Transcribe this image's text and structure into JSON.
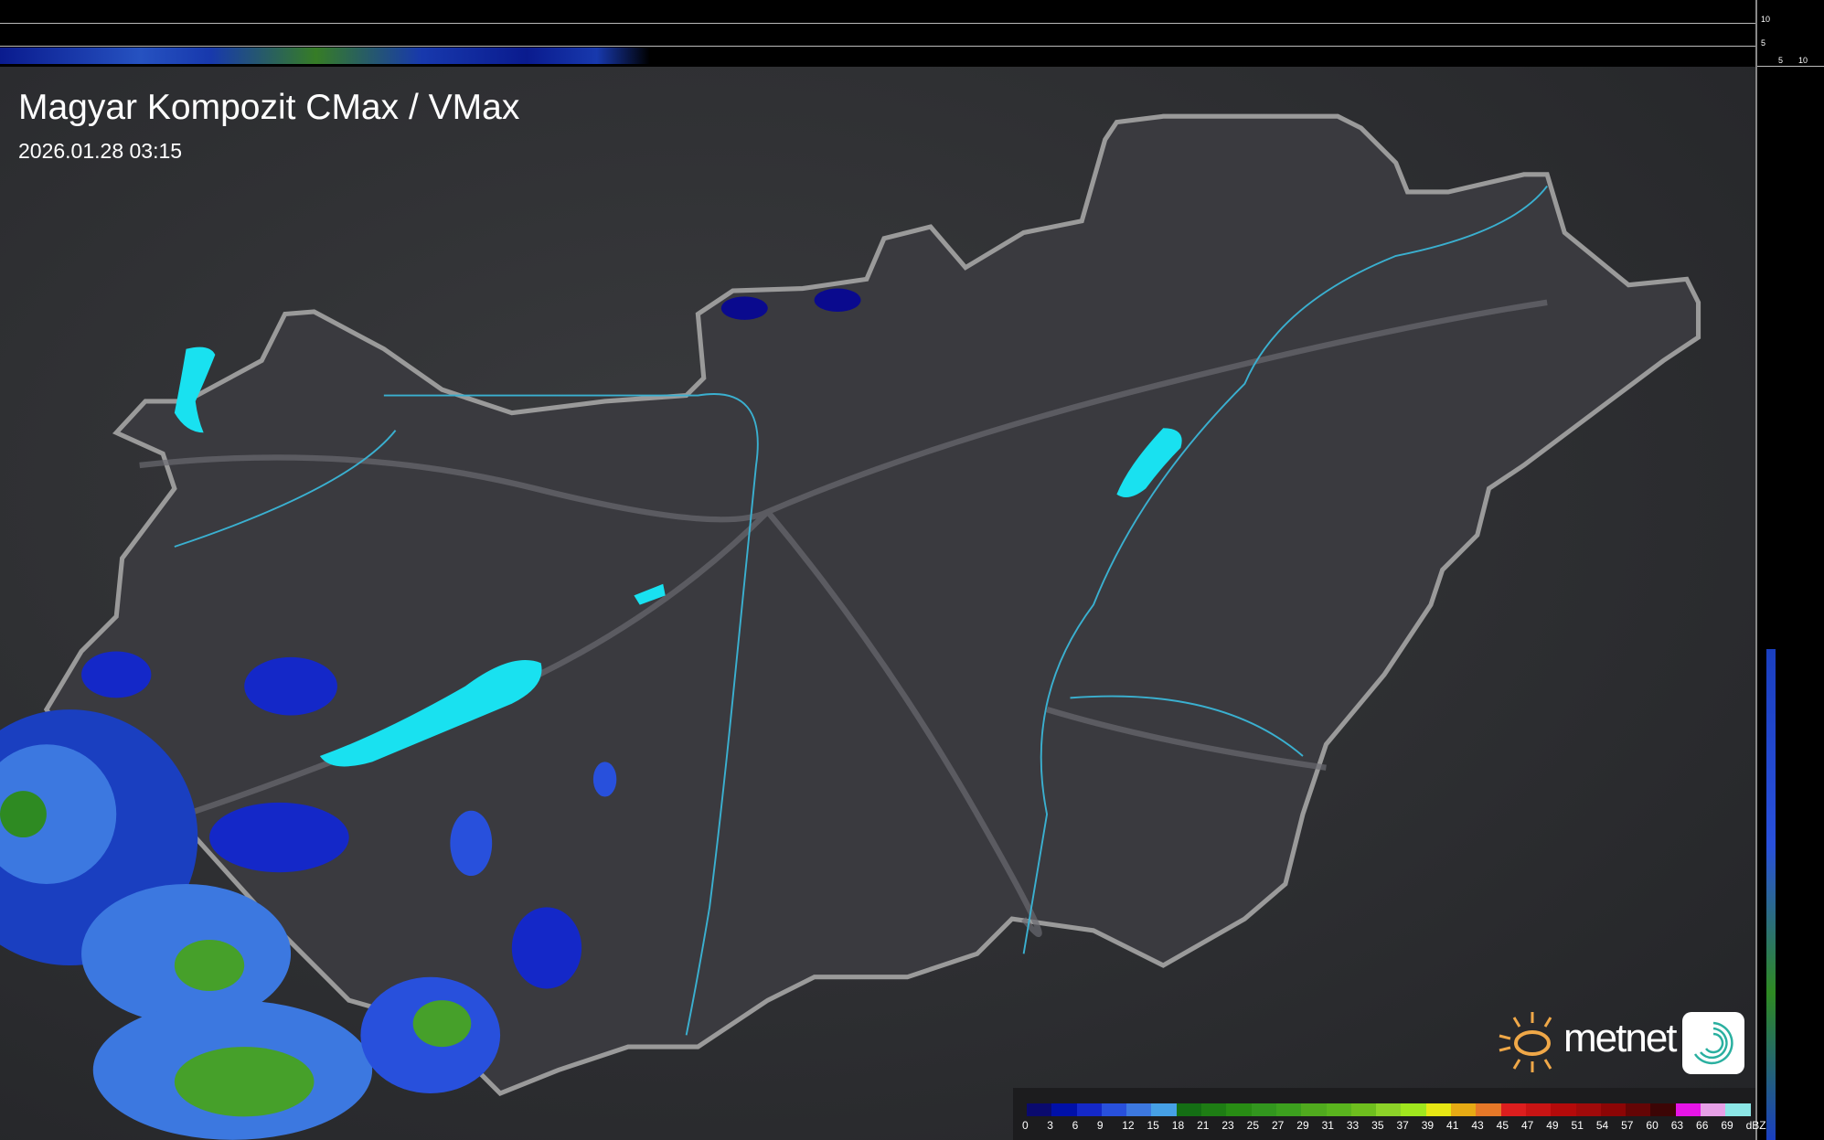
{
  "title": "Magyar Kompozit CMax / VMax",
  "timestamp": "2026.01.28 03:15",
  "side_scale": {
    "v_ticks": [
      "10",
      "5"
    ],
    "h_ticks": [
      "5",
      "10"
    ]
  },
  "legend": {
    "unit": "dBZ",
    "labels": [
      "0",
      "3",
      "6",
      "9",
      "12",
      "15",
      "18",
      "21",
      "23",
      "25",
      "27",
      "29",
      "31",
      "33",
      "35",
      "37",
      "39",
      "41",
      "43",
      "45",
      "47",
      "49",
      "51",
      "54",
      "57",
      "60",
      "63",
      "66",
      "69"
    ],
    "colors": [
      "#0a0a6e",
      "#0010a8",
      "#1428c8",
      "#2850dc",
      "#3c78e0",
      "#46a0e6",
      "#146e14",
      "#1e7d14",
      "#288c14",
      "#32961e",
      "#3ca01e",
      "#50aa1e",
      "#5ab41e",
      "#6ebe1e",
      "#8cd228",
      "#a0e61e",
      "#e6e614",
      "#e6aa14",
      "#e67828",
      "#dc1e1e",
      "#c81414",
      "#b40a0a",
      "#a00a0a",
      "#8c0505",
      "#640505",
      "#3c0505",
      "#e614e6",
      "#e6a0e6",
      "#8ce6e6"
    ]
  },
  "logo": {
    "text": "metnet",
    "sun_color": "#f0a848",
    "icon_color": "#2ab0a0"
  },
  "colors": {
    "lake": "#19e1f0",
    "river": "#3ab0d0",
    "border": "#9a9a9a"
  }
}
